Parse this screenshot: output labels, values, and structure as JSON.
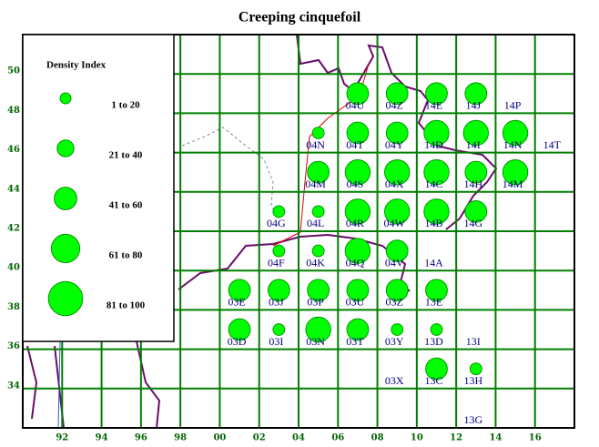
{
  "chart_data": {
    "type": "bubble",
    "title": "Creeping cinquefoil",
    "xlim": [
      90,
      118
    ],
    "ylim": [
      32,
      52
    ],
    "xticks": [
      92,
      94,
      96,
      98,
      {
        "value": 100,
        "label": "00"
      },
      {
        "value": 102,
        "label": "02"
      },
      {
        "value": 104,
        "label": "04"
      },
      {
        "value": 106,
        "label": "06"
      },
      {
        "value": 108,
        "label": "08"
      },
      {
        "value": 110,
        "label": "10"
      },
      {
        "value": 112,
        "label": "12"
      },
      {
        "value": 114,
        "label": "14"
      },
      {
        "value": 116,
        "label": "16"
      }
    ],
    "yticks": [
      34,
      36,
      38,
      40,
      42,
      44,
      46,
      48,
      50
    ],
    "grid": true,
    "color": "#00ff00",
    "legend": {
      "title": "Density Index",
      "classes": [
        "1 to 20",
        "21 to 40",
        "41 to 60",
        "61 to 80",
        "81 to 100"
      ]
    },
    "labels": [
      "04U",
      "04Z",
      "14E",
      "14J",
      "14P",
      "04N",
      "04T",
      "04Y",
      "14D",
      "14I",
      "14N",
      "14T",
      "04M",
      "04S",
      "04X",
      "14C",
      "14H",
      "14M",
      "04G",
      "04L",
      "04R",
      "04W",
      "14B",
      "14G",
      "04F",
      "04K",
      "04Q",
      "04V",
      "14A",
      "03E",
      "03J",
      "03P",
      "03U",
      "03Z",
      "13E",
      "03D",
      "03I",
      "03N",
      "03T",
      "03Y",
      "13D",
      "13I",
      "03X",
      "13C",
      "13H",
      "13G"
    ],
    "x": [
      107,
      109,
      111,
      113,
      115,
      105,
      107,
      109,
      111,
      113,
      115,
      117,
      105,
      107,
      109,
      111,
      113,
      115,
      103,
      105,
      107,
      109,
      111,
      113,
      103,
      105,
      107,
      109,
      111,
      101,
      103,
      105,
      107,
      109,
      111,
      101,
      103,
      105,
      107,
      109,
      111,
      113,
      109,
      111,
      113,
      113
    ],
    "y": [
      49,
      49,
      49,
      49,
      49,
      47,
      47,
      47,
      47,
      47,
      47,
      47,
      45,
      45,
      45,
      45,
      45,
      45,
      43,
      43,
      43,
      43,
      43,
      43,
      41,
      41,
      41,
      41,
      41,
      39,
      39,
      39,
      39,
      39,
      39,
      37,
      37,
      37,
      37,
      37,
      37,
      37,
      35,
      35,
      35,
      33
    ],
    "density": [
      50,
      50,
      50,
      50,
      null,
      10,
      50,
      50,
      70,
      70,
      70,
      null,
      50,
      70,
      70,
      70,
      50,
      70,
      10,
      10,
      70,
      70,
      70,
      50,
      10,
      10,
      70,
      50,
      null,
      50,
      50,
      50,
      50,
      50,
      50,
      50,
      10,
      70,
      50,
      10,
      10,
      null,
      null,
      50,
      10,
      null
    ]
  }
}
